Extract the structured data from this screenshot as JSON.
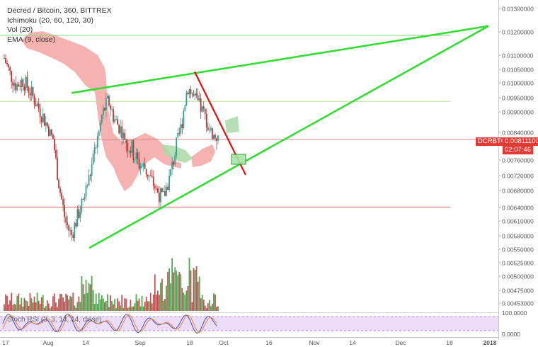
{
  "legend": {
    "title": "Decred / Bitcoin, 360, BITTREX",
    "ichimoku": "Ichimoku (20, 60, 120, 30)",
    "vol": "Vol (20)",
    "ema": "EMA (9, close)"
  },
  "rsi_label": "Stoch RSI (3, 3, 14, 14, close)",
  "price_tag": {
    "symbol": "DCRBTC",
    "price": "0.00811100",
    "timer": "02:07:46",
    "color": "#e53935"
  },
  "colors": {
    "up": "#26a69a",
    "up_vol": "#2e9e2e",
    "down": "#b23a3a",
    "cloud_bear": "#f4a3a3",
    "cloud_bull": "#a9d9a9",
    "trendline": "#33dd33",
    "breakline": "#e01010",
    "hline_green": "#7fd67f",
    "hline_red": "#e58a8a",
    "rsi_band": "#e6d4f7"
  },
  "chart_data": {
    "type": "candlestick",
    "title": "Decred / Bitcoin, 360, BITTREX",
    "y_ticks": [
      "0.01300000",
      "0.01200000",
      "0.01100000",
      "0.01050000",
      "0.01000000",
      "0.00950000",
      "0.00900000",
      "0.00840000",
      "0.00800000",
      "0.00760000",
      "0.00720000",
      "0.00680000",
      "0.00640000",
      "0.00610000",
      "0.00580000",
      "0.00550000",
      "0.00525000",
      "0.00500000",
      "0.00475000",
      "0.00453000"
    ],
    "x_ticks": [
      "17",
      "Aug",
      "14",
      "Sep",
      "18",
      "Oct",
      "16",
      "Nov",
      "14",
      "Dec",
      "18",
      "2018"
    ],
    "rsi_ticks": [
      "100.0000",
      "0.0000"
    ],
    "last_price": 0.008111,
    "approx_closes": [
      0.0109,
      0.0103,
      0.0099,
      0.0101,
      0.0098,
      0.0094,
      0.009,
      0.0086,
      0.0081,
      0.0069,
      0.0061,
      0.0058,
      0.0062,
      0.0066,
      0.0072,
      0.0079,
      0.0089,
      0.0094,
      0.0088,
      0.0085,
      0.008,
      0.0078,
      0.0075,
      0.0074,
      0.0071,
      0.0068,
      0.0066,
      0.0071,
      0.0078,
      0.0086,
      0.0099,
      0.0095,
      0.0092,
      0.0088,
      0.0083,
      0.0081
    ],
    "annotations": {
      "hline_green_top": 0.01185,
      "hline_green_mid": 0.00937,
      "hline_red_mid": 0.00808,
      "hline_red_low": 0.00641,
      "wedge_upper": [
        [
          "Aug 5",
          0.00966
        ],
        [
          "Jan 1",
          0.01225
        ]
      ],
      "wedge_lower": [
        [
          "Aug 14",
          0.00553
        ],
        [
          "Jan 1",
          0.01225
        ]
      ],
      "break_line": [
        [
          "Sep 18",
          0.01041
        ],
        [
          "Oct 8",
          0.00722
        ]
      ]
    }
  }
}
